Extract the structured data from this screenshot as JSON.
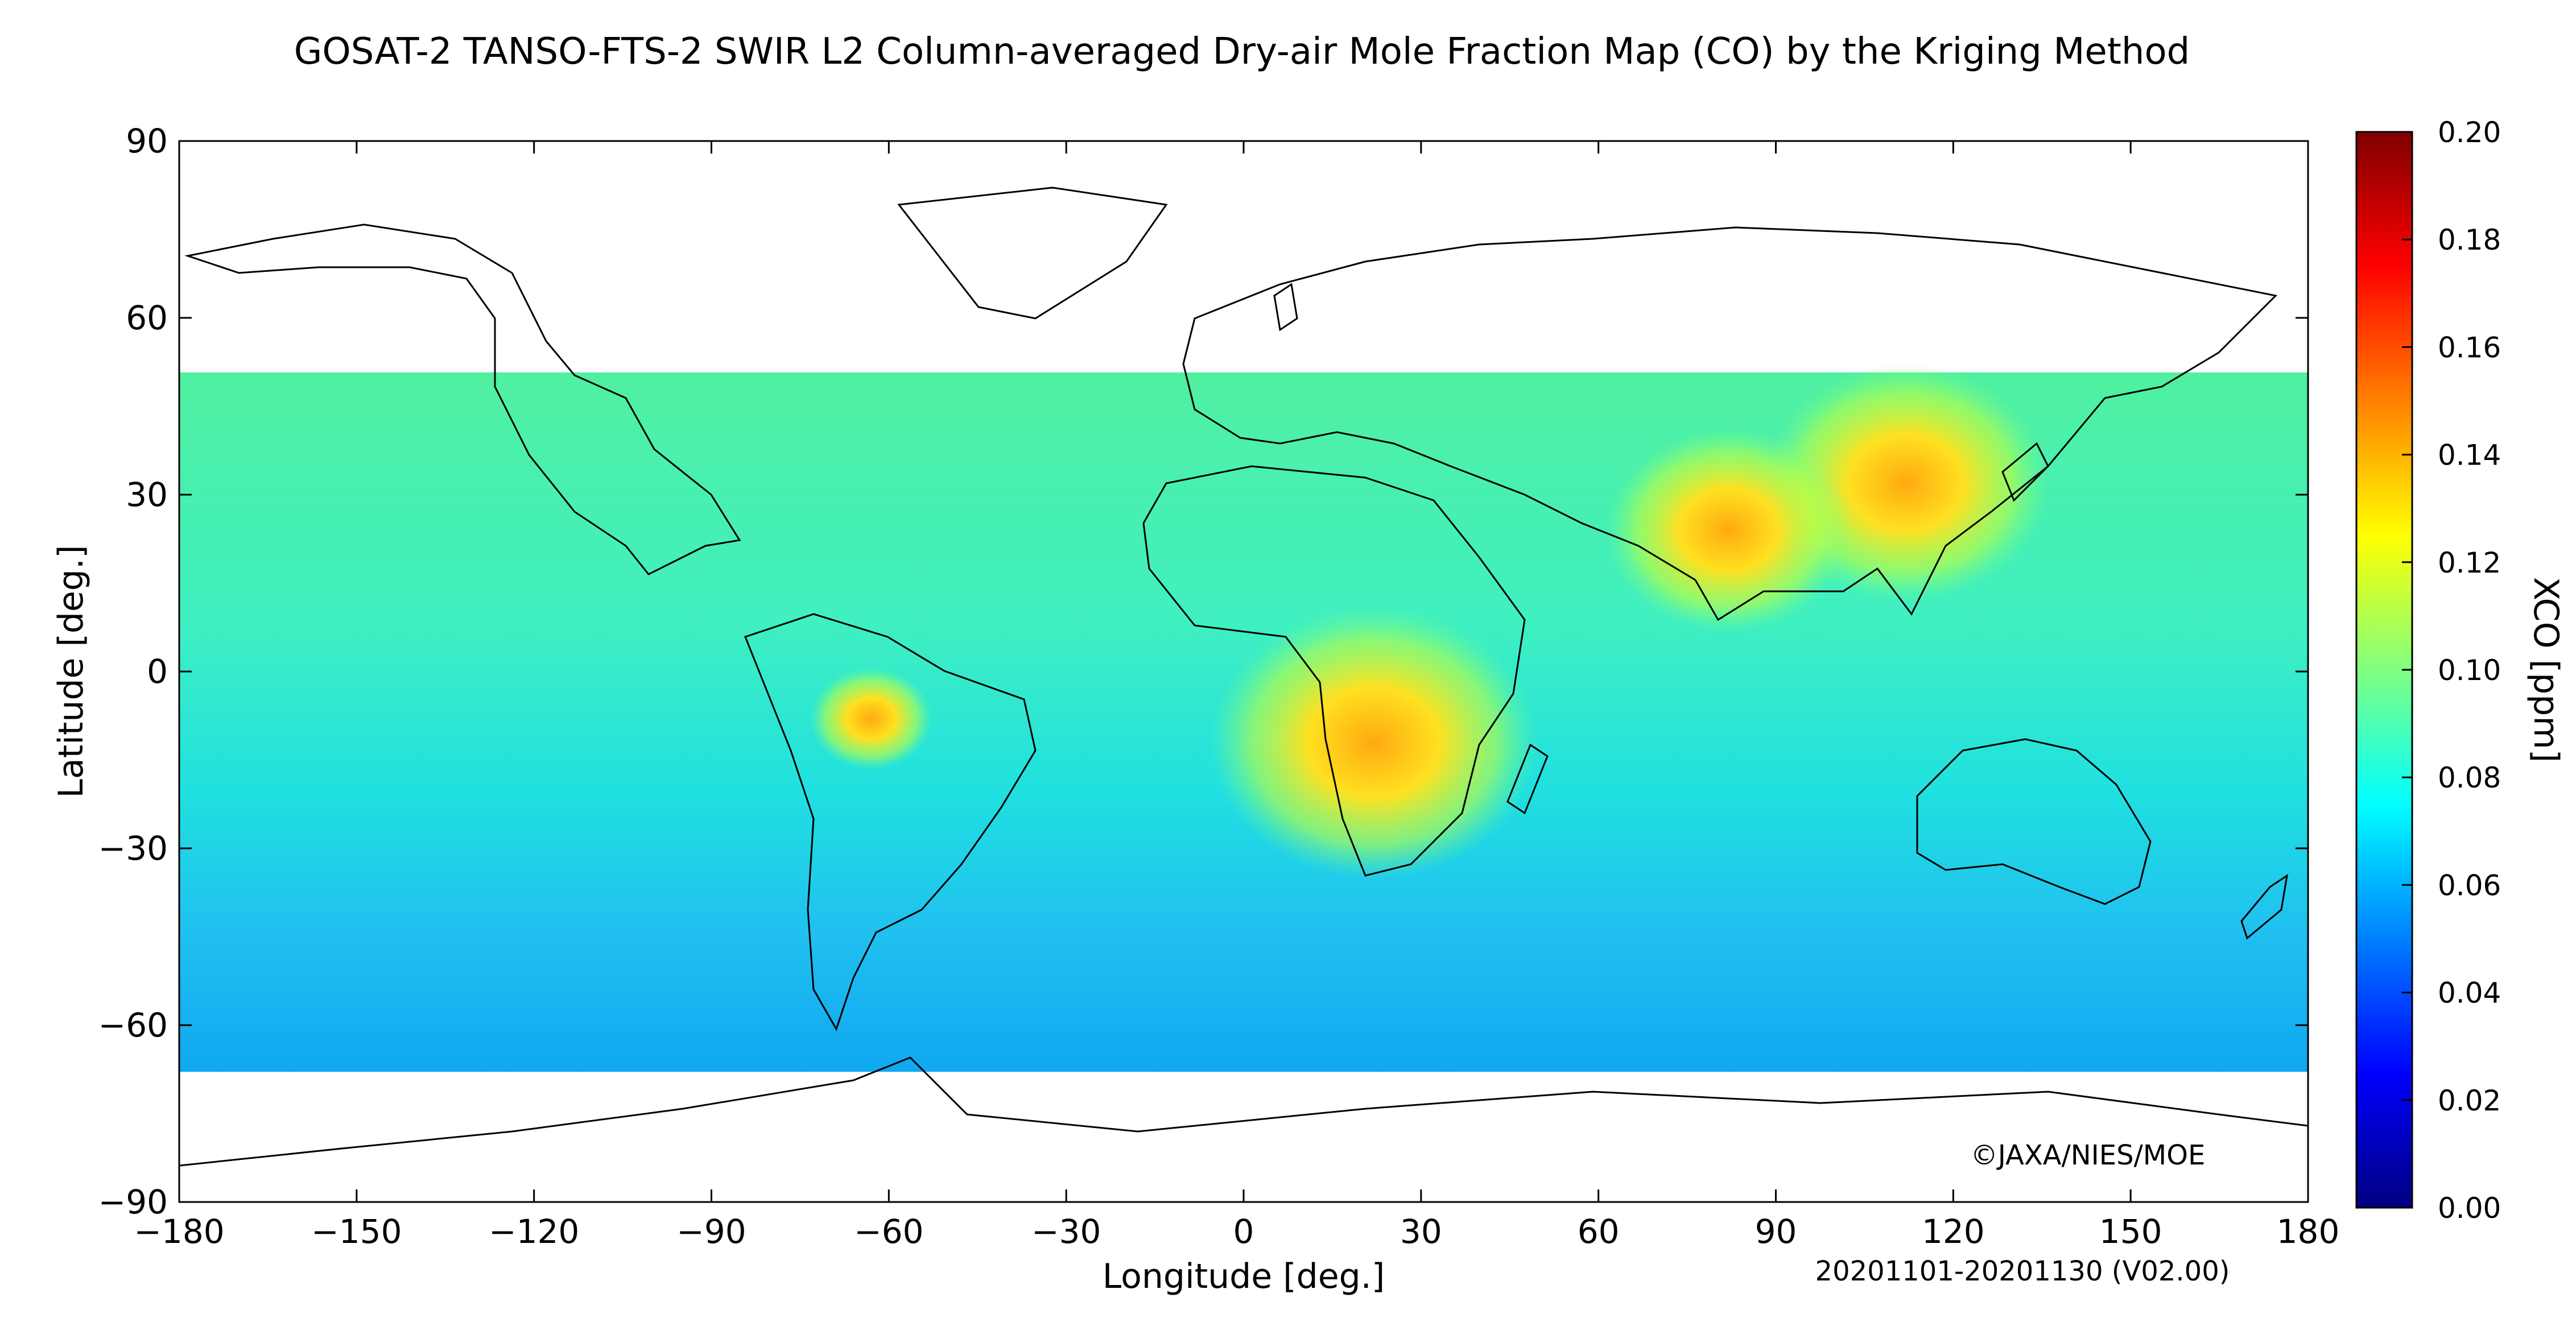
{
  "title": "GOSAT-2 TANSO-FTS-2 SWIR L2 Column-averaged Dry-air Mole Fraction Map (CO) by the Kriging Method",
  "chart_data": {
    "type": "heatmap",
    "projection": "equirectangular",
    "xlabel": "Longitude [deg.]",
    "ylabel": "Latitude [deg.]",
    "xlim": [
      -180,
      180
    ],
    "ylim": [
      -90,
      90
    ],
    "x_ticks": [
      -180,
      -150,
      -120,
      -90,
      -60,
      -30,
      0,
      30,
      60,
      90,
      120,
      150,
      180
    ],
    "y_ticks": [
      -90,
      -60,
      -30,
      0,
      30,
      60,
      90
    ],
    "x_tick_labels": [
      "−180",
      "−150",
      "−120",
      "−90",
      "−60",
      "−30",
      "0",
      "30",
      "60",
      "90",
      "120",
      "150",
      "180"
    ],
    "y_tick_labels": [
      "−90",
      "−60",
      "−30",
      "0",
      "30",
      "60",
      "90"
    ],
    "colorbar": {
      "label": "XCO [ppm]",
      "range": [
        0.0,
        0.2
      ],
      "ticks": [
        0.0,
        0.02,
        0.04,
        0.06,
        0.08,
        0.1,
        0.12,
        0.14,
        0.16,
        0.18,
        0.2
      ],
      "tick_labels": [
        "0.00",
        "0.02",
        "0.04",
        "0.06",
        "0.08",
        "0.10",
        "0.12",
        "0.14",
        "0.16",
        "0.18",
        "0.20"
      ],
      "colormap": "jet",
      "colors": [
        "#000080",
        "#0000ff",
        "#0080ff",
        "#00ffff",
        "#80ff80",
        "#ffff00",
        "#ff8000",
        "#ff0000",
        "#800000"
      ]
    },
    "data_coverage_lat": {
      "north_edge_approx": 52,
      "south_edge_approx": -67
    },
    "background_value_range": [
      0.06,
      0.1
    ],
    "no_data_color": "#ffffff",
    "hotspots": [
      {
        "region": "Southern Africa",
        "lon": 22,
        "lat": -12,
        "xco": 0.14
      },
      {
        "region": "Eastern China",
        "lon": 112,
        "lat": 32,
        "xco": 0.135
      },
      {
        "region": "Northern India",
        "lon": 82,
        "lat": 24,
        "xco": 0.13
      },
      {
        "region": "Amazon basin",
        "lon": -63,
        "lat": -8,
        "xco": 0.115
      }
    ]
  },
  "footer": {
    "copyright": "©JAXA/NIES/MOE",
    "period": "20201101-20201130 (V02.00)"
  }
}
